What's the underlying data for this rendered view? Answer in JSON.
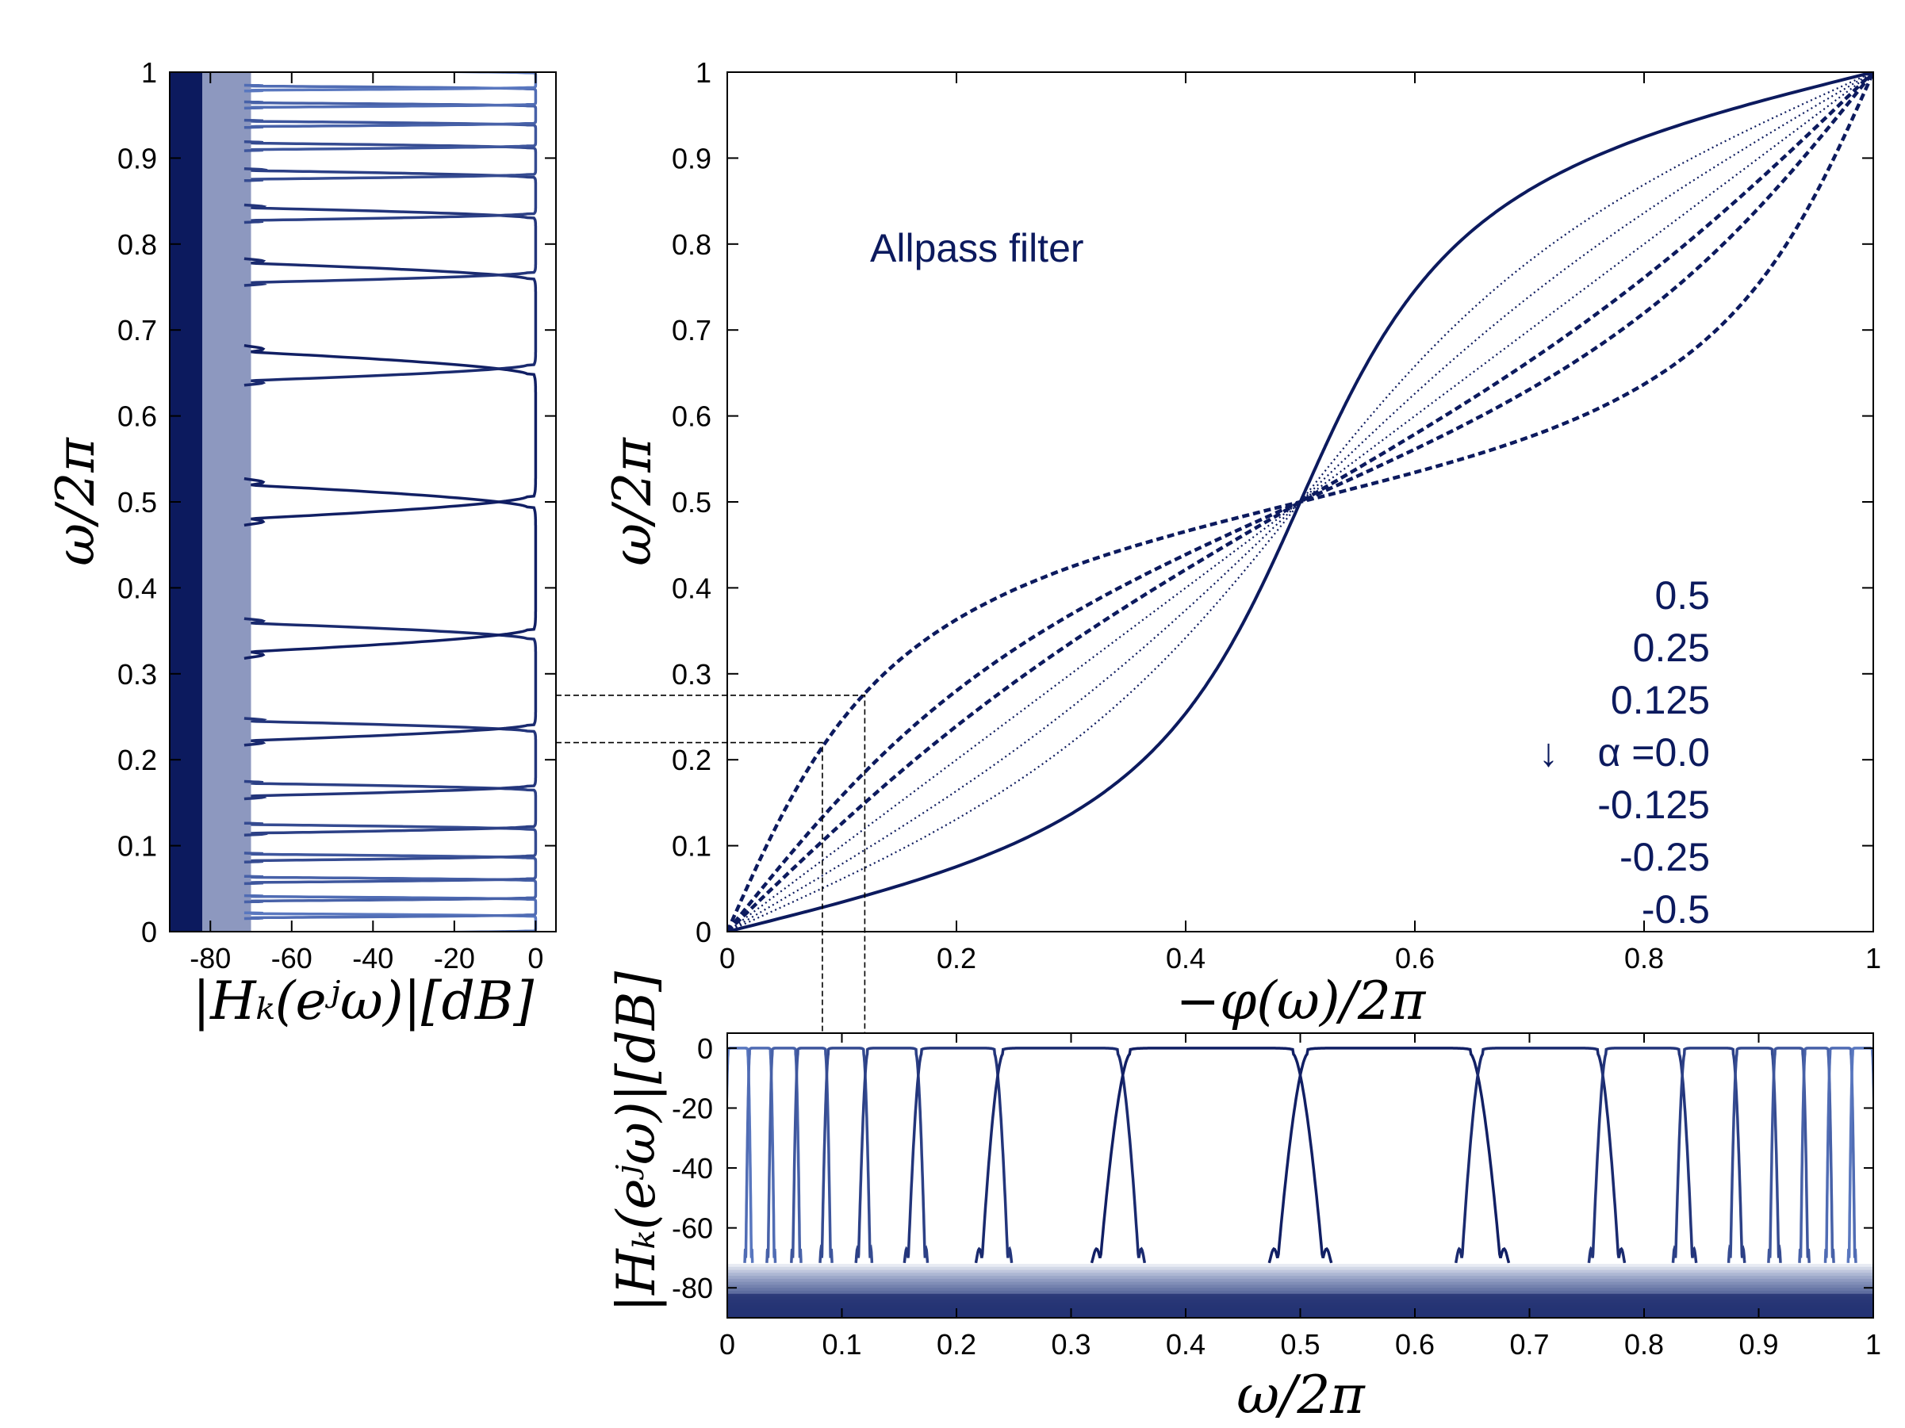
{
  "colors": {
    "dark": "#0c1a5e",
    "light": "#5a78c0",
    "axis": "#000000"
  },
  "chart_data": [
    {
      "id": "allpass",
      "type": "line",
      "title": "",
      "annotation": "Allpass filter",
      "xlabel": "−φ(ω)/2π",
      "ylabel": "ω/2π",
      "xlim": [
        0,
        1
      ],
      "ylim": [
        0,
        1
      ],
      "xticks": [
        "0",
        "0.2",
        "0.4",
        "0.6",
        "0.8",
        "1"
      ],
      "yticks": [
        "0",
        "0.1",
        "0.2",
        "0.3",
        "0.4",
        "0.5",
        "0.6",
        "0.7",
        "0.8",
        "0.9",
        "1"
      ],
      "legend_title_arrow": "↓",
      "legend_entries": [
        "0.5",
        "0.25",
        "0.125",
        "α =0.0",
        "-0.125",
        "-0.25",
        "-0.5"
      ],
      "series": [
        {
          "name": "0.5",
          "alpha": 0.5,
          "style": "solid"
        },
        {
          "name": "0.25",
          "alpha": 0.25,
          "style": "dotted"
        },
        {
          "name": "0.125",
          "alpha": 0.125,
          "style": "dotted"
        },
        {
          "name": "0.0",
          "alpha": 0.0,
          "style": "dotted"
        },
        {
          "name": "-0.125",
          "alpha": -0.125,
          "style": "dashed"
        },
        {
          "name": "-0.25",
          "alpha": -0.25,
          "style": "dashed"
        },
        {
          "name": "-0.5",
          "alpha": -0.5,
          "style": "dashed"
        }
      ],
      "guide_lines": [
        {
          "omega": 0.22,
          "phase": 0.083
        },
        {
          "omega": 0.275,
          "phase": 0.12
        }
      ]
    },
    {
      "id": "left-mag",
      "type": "line",
      "xlabel": "|Hₖ(eʲω)|[dB]",
      "ylabel": "ω/2π",
      "xlim": [
        -90,
        5
      ],
      "ylim": [
        0,
        1
      ],
      "xticks": [
        "-80",
        "-60",
        "-40",
        "-20",
        "0"
      ],
      "yticks": [
        "0",
        "0.1",
        "0.2",
        "0.3",
        "0.4",
        "0.5",
        "0.6",
        "0.7",
        "0.8",
        "0.9",
        "1"
      ],
      "num_bands": 18,
      "alpha": 0.5,
      "stopband_level_db": -70
    },
    {
      "id": "bottom-mag",
      "type": "line",
      "xlabel": "ω/2π",
      "ylabel": "|Hₖ(eʲω)|[dB]",
      "xlim": [
        0,
        1
      ],
      "ylim": [
        -90,
        5
      ],
      "xticks": [
        "0",
        "0.1",
        "0.2",
        "0.3",
        "0.4",
        "0.5",
        "0.6",
        "0.7",
        "0.8",
        "0.9",
        "1"
      ],
      "yticks": [
        "-80",
        "-60",
        "-40",
        "-20",
        "0"
      ],
      "num_bands": 18,
      "alpha": 0.5,
      "stopband_level_db": -70
    }
  ]
}
